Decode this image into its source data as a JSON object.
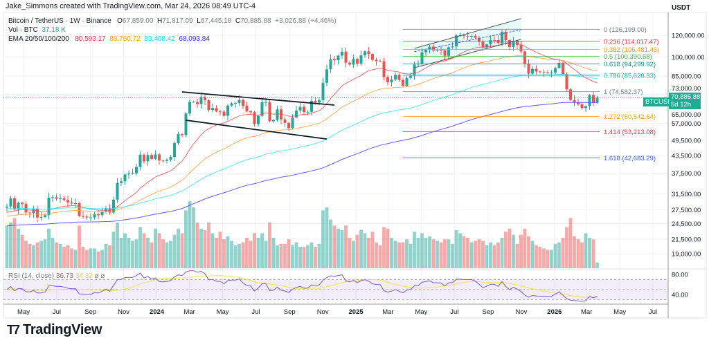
{
  "attribution": "Jake_Simmons created with TradingView.com, Mar 24, 2026 08:49 UTC-4",
  "legend": {
    "symbol": "Bitcoin / TetherUS · 1W · Binance",
    "open_label": "O",
    "open": "67,859.00",
    "high_label": "H",
    "high": "71,817.09",
    "low_label": "L",
    "low": "67,445.18",
    "close_label": "C",
    "close": "70,885.88",
    "change": "+3,026.88 (+4.46%)",
    "vol_label": "Vol · BTC",
    "vol": "37.18 K",
    "ema_label": "EMA 20/50/100/200",
    "ema_values": [
      "80,593.17",
      "88,760.72",
      "83,468.42",
      "68,093.84"
    ]
  },
  "rsi": {
    "label": "RSI (14, close)",
    "value": "36.73",
    "ma": "34.32",
    "icons": [
      "hide-icon",
      "hide-icon"
    ]
  },
  "axis": {
    "currency": "USDT"
  },
  "price_tag": {
    "symbol": "BTCUSDT",
    "price": "70,885.88",
    "countdown": "5d 12h"
  },
  "logo": "TradingView",
  "colors": {
    "up": "#26a69a",
    "down": "#ef5350",
    "ema20": "#f44d4d",
    "ema50": "#ffa040",
    "ema100": "#35e8f5",
    "ema200": "#4a3dff",
    "rsi": "#7e57c2",
    "rsi_ma": "#f5e04a",
    "price_line": "#22ab94"
  },
  "chart_data": {
    "type": "candlestick",
    "symbol": "BTCUSDT",
    "interval": "1W",
    "start_week": "2023-04-03",
    "y_scale": "log",
    "close": [
      28300,
      30300,
      27600,
      29200,
      28900,
      26900,
      26800,
      27700,
      25800,
      25900,
      26300,
      30500,
      30600,
      30200,
      30300,
      29900,
      29300,
      29000,
      29100,
      26100,
      26000,
      25800,
      25800,
      26500,
      26300,
      27000,
      27900,
      26900,
      30000,
      34500,
      35000,
      37100,
      37400,
      37400,
      39500,
      43800,
      41400,
      43700,
      42300,
      43900,
      41700,
      41600,
      42000,
      43000,
      48300,
      52100,
      51700,
      62000,
      68400,
      68400,
      67200,
      71300,
      69400,
      63900,
      64900,
      63100,
      63000,
      60800,
      66300,
      67600,
      67700,
      69600,
      66200,
      63200,
      62700,
      56700,
      60800,
      68200,
      68300,
      58100,
      58700,
      64200,
      59000,
      57300,
      54800,
      60000,
      63600,
      65600,
      62800,
      62900,
      69000,
      68000,
      69400,
      80400,
      90000,
      98000,
      97200,
      101100,
      104500,
      95200,
      93700,
      98300,
      94500,
      101300,
      104700,
      102400,
      97500,
      96500,
      96200,
      84300,
      80700,
      82600,
      86000,
      82300,
      78400,
      83800,
      85200,
      93800,
      94300,
      104000,
      106500,
      109000,
      105600,
      105700,
      105500,
      100900,
      108400,
      109200,
      119800,
      119900,
      119400,
      119300,
      119300,
      117500,
      113500,
      108300,
      111100,
      115300,
      115200,
      112200,
      123500,
      115200,
      108600,
      114500,
      110500,
      104700,
      94300,
      86800,
      90400,
      88400,
      88200,
      87800,
      87500,
      87600,
      91000,
      95000,
      86500,
      76000,
      69500,
      68000,
      67000,
      65000,
      66000,
      72500,
      67859,
      70885.88
    ],
    "volume_k": [
      280,
      300,
      330,
      260,
      220,
      180,
      160,
      150,
      170,
      180,
      190,
      260,
      200,
      170,
      160,
      140,
      150,
      130,
      120,
      280,
      140,
      120,
      130,
      130,
      110,
      120,
      160,
      150,
      240,
      300,
      200,
      230,
      200,
      180,
      190,
      270,
      230,
      200,
      170,
      260,
      230,
      190,
      170,
      180,
      220,
      260,
      230,
      380,
      440,
      400,
      300,
      260,
      250,
      300,
      230,
      200,
      240,
      190,
      210,
      180,
      150,
      160,
      170,
      200,
      180,
      230,
      200,
      230,
      180,
      300,
      200,
      150,
      160,
      160,
      190,
      150,
      170,
      140,
      140,
      150,
      170,
      140,
      160,
      380,
      400,
      320,
      280,
      260,
      250,
      280,
      200,
      180,
      220,
      250,
      230,
      200,
      240,
      170,
      150,
      270,
      260,
      200,
      180,
      170,
      170,
      190,
      160,
      240,
      200,
      230,
      200,
      210,
      190,
      180,
      170,
      190,
      190,
      160,
      250,
      230,
      210,
      200,
      170,
      180,
      190,
      180,
      150,
      170,
      150,
      170,
      200,
      240,
      260,
      220,
      160,
      220,
      260,
      210,
      180,
      150,
      140,
      130,
      120,
      120,
      160,
      170,
      200,
      270,
      330,
      210,
      190,
      170,
      230,
      200,
      190,
      37.18
    ],
    "last_candle": {
      "open": 67859.0,
      "high": 71817.09,
      "low": 67445.18,
      "close": 70885.88
    },
    "ema_periods": [
      20,
      50,
      100,
      200
    ],
    "y_ticks": [
      "120,000.00",
      "100,000.00",
      "85,000.00",
      "73,000.00",
      "65,000.00",
      "57,000.00",
      "49,500.00",
      "43,500.00",
      "37,500.00",
      "31,500.00",
      "27,500.00",
      "24,500.00",
      "21,500.00",
      "19,000.00"
    ],
    "rsi_ticks": [
      "80.00",
      "40.00"
    ],
    "x_ticks": [
      {
        "label": "May",
        "date": "2023-05-01"
      },
      {
        "label": "Jul",
        "date": "2023-07-01"
      },
      {
        "label": "Sep",
        "date": "2023-09-01"
      },
      {
        "label": "Nov",
        "date": "2023-11-01"
      },
      {
        "label": "2024",
        "date": "2024-01-01",
        "bold": true
      },
      {
        "label": "Mar",
        "date": "2024-03-01"
      },
      {
        "label": "May",
        "date": "2024-05-01"
      },
      {
        "label": "Jul",
        "date": "2024-07-01"
      },
      {
        "label": "Sep",
        "date": "2024-09-01"
      },
      {
        "label": "Nov",
        "date": "2024-11-01"
      },
      {
        "label": "2025",
        "date": "2025-01-01",
        "bold": true
      },
      {
        "label": "Mar",
        "date": "2025-03-01"
      },
      {
        "label": "May",
        "date": "2025-05-01"
      },
      {
        "label": "Jul",
        "date": "2025-07-01"
      },
      {
        "label": "Sep",
        "date": "2025-09-01"
      },
      {
        "label": "Nov",
        "date": "2025-11-01"
      },
      {
        "label": "2026",
        "date": "2026-01-01",
        "bold": true
      },
      {
        "label": "Mar",
        "date": "2026-03-01"
      },
      {
        "label": "May",
        "date": "2026-05-01"
      },
      {
        "label": "Jul",
        "date": "2026-07-01"
      }
    ],
    "fib_anchor_date": "2025-03-31",
    "fib": [
      {
        "label": "0 (126,199.00)",
        "price": 126199.0,
        "color": "#787b86"
      },
      {
        "label": "0.236 (114,017.47)",
        "price": 114017.47,
        "color": "#f23645"
      },
      {
        "label": "0.382 (106,481.45)",
        "price": 106481.45,
        "color": "#ff9800"
      },
      {
        "label": "0.5 (100,390.68)",
        "price": 100390.68,
        "color": "#4caf50"
      },
      {
        "label": "0.618 (94,299.92)",
        "price": 94299.92,
        "color": "#089981"
      },
      {
        "label": "0.786 (85,628.33)",
        "price": 85628.33,
        "color": "#00bcd4"
      },
      {
        "label": "1 (74,582.37)",
        "price": 74582.37,
        "color": "#787b86"
      },
      {
        "label": "1.272 (60,542.64)",
        "price": 60542.64,
        "color": "#ff9800"
      },
      {
        "label": "1.414 (53,213.08)",
        "price": 53213.08,
        "color": "#f23645"
      },
      {
        "label": "1.618 (42,683.29)",
        "price": 42683.29,
        "color": "#2962ff"
      }
    ],
    "trendlines": [
      {
        "name": "pennant-upper",
        "from": {
          "date": "2024-02-19",
          "price": 74400
        },
        "to": {
          "date": "2024-11-25",
          "price": 66600
        },
        "color": "#131722"
      },
      {
        "name": "pennant-lower",
        "from": {
          "date": "2024-02-26",
          "price": 58600
        },
        "to": {
          "date": "2024-11-11",
          "price": 50000
        },
        "color": "#131722"
      },
      {
        "name": "channel-upper",
        "from": {
          "date": "2025-04-21",
          "price": 107400
        },
        "to": {
          "date": "2025-11-03",
          "price": 138000
        },
        "color": "#555555"
      },
      {
        "name": "channel-lower",
        "from": {
          "date": "2025-04-21",
          "price": 91200
        },
        "to": {
          "date": "2025-11-03",
          "price": 115900
        },
        "color": "#555555"
      },
      {
        "name": "channel-mid",
        "from": {
          "date": "2025-04-21",
          "price": 104400
        },
        "to": {
          "date": "2025-11-03",
          "price": 125800
        },
        "color": "#2962ff",
        "dashed": true
      }
    ]
  }
}
